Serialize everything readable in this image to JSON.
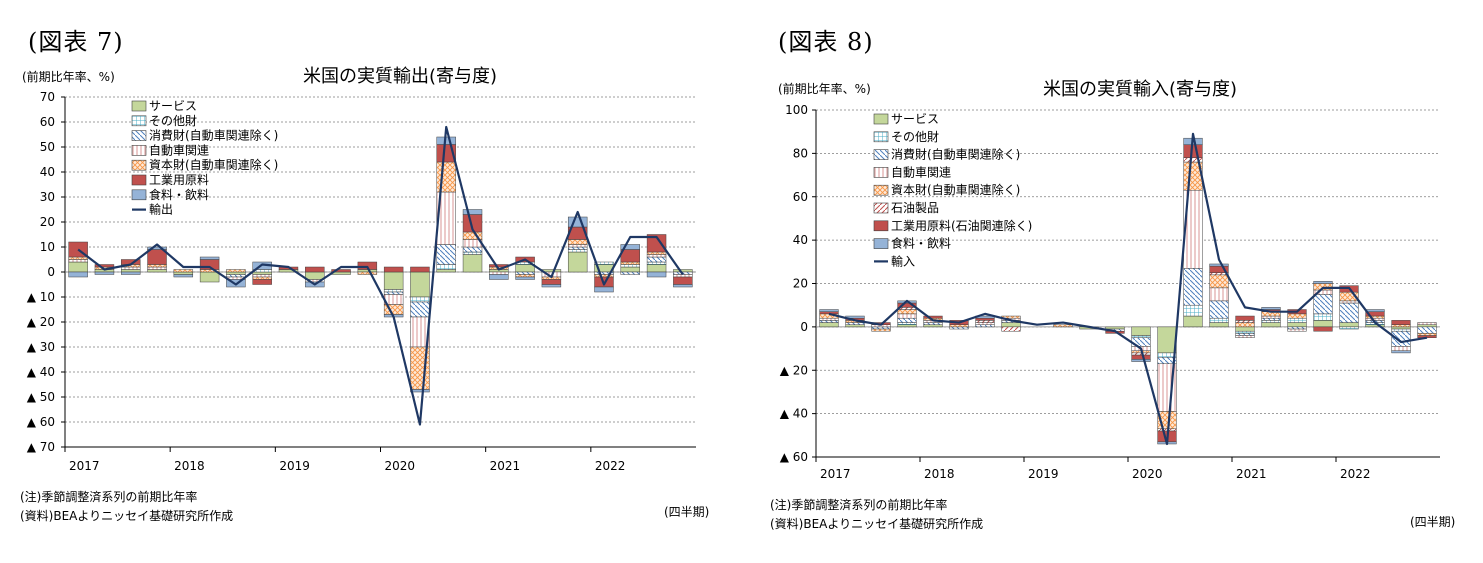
{
  "charts": [
    {
      "figure_label": "(図表 7)",
      "unit_label": "(前期比年率、%)",
      "title": "米国の実質輸出(寄与度)",
      "note": "(注)季節調整済系列の前期比年率",
      "source": "(資料)BEAよりニッセイ基礎研究所作成",
      "period_label": "(四半期)"
    },
    {
      "figure_label": "(図表 8)",
      "unit_label": "(前期比年率、%)",
      "title": "米国の実質輸入(寄与度)",
      "note": "(注)季節調整済系列の前期比年率",
      "source": "(資料)BEAよりニッセイ基礎研究所作成",
      "period_label": "(四半期)"
    }
  ],
  "chart_data": [
    {
      "type": "bar",
      "stacked": true,
      "line_series": "輸出",
      "x_labels": [
        "2017",
        "2018",
        "2019",
        "2020",
        "2021",
        "2022"
      ],
      "quarters": [
        "2017Q1",
        "2017Q2",
        "2017Q3",
        "2017Q4",
        "2018Q1",
        "2018Q2",
        "2018Q3",
        "2018Q4",
        "2019Q1",
        "2019Q2",
        "2019Q3",
        "2019Q4",
        "2020Q1",
        "2020Q2",
        "2020Q3",
        "2020Q4",
        "2021Q1",
        "2021Q2",
        "2021Q3",
        "2021Q4",
        "2022Q1",
        "2022Q2",
        "2022Q3",
        "2022Q4"
      ],
      "ylim": [
        -70,
        70
      ],
      "yticks": [
        -70,
        -60,
        -50,
        -40,
        -30,
        -20,
        -10,
        0,
        10,
        20,
        30,
        40,
        50,
        60,
        70
      ],
      "ytick_labels": [
        "▲ 70",
        "▲ 60",
        "▲ 50",
        "▲ 40",
        "▲ 30",
        "▲ 20",
        "▲ 10",
        "0",
        "10",
        "20",
        "30",
        "40",
        "50",
        "60",
        "70"
      ],
      "grid": true,
      "legend_position": "top-left",
      "series": [
        {
          "name": "サービス",
          "color": "#c4d79b",
          "pattern": "solid",
          "values": [
            4,
            1,
            1,
            1,
            -1,
            -4,
            -1,
            -1,
            1,
            -3,
            -1,
            1,
            -7,
            -10,
            1,
            7,
            1,
            3,
            1,
            8,
            3,
            2,
            3,
            1
          ]
        },
        {
          "name": "その他財",
          "color": "#4bacc6",
          "pattern": "grid",
          "values": [
            0,
            0,
            0,
            0,
            0,
            0,
            0,
            1,
            0,
            0,
            0,
            0,
            -1,
            -2,
            2,
            1,
            0,
            1,
            0,
            1,
            1,
            1,
            1,
            0
          ]
        },
        {
          "name": "消費財(自動車関連除く)",
          "color": "#4f81bd",
          "pattern": "diag",
          "values": [
            0,
            0,
            0,
            0,
            0,
            0,
            -1,
            0,
            0,
            0,
            0,
            0,
            -1,
            -6,
            8,
            2,
            0,
            -1,
            0,
            1,
            -1,
            -1,
            2,
            -1
          ]
        },
        {
          "name": "自動車関連",
          "color": "#d99694",
          "pattern": "vert",
          "values": [
            1,
            0,
            1,
            1,
            0,
            0,
            -1,
            -1,
            0,
            -1,
            0,
            0,
            -4,
            -12,
            21,
            3,
            -1,
            0,
            -2,
            1,
            0,
            0,
            1,
            -1
          ]
        },
        {
          "name": "資本財(自動車関連除く)",
          "color": "#f79646",
          "pattern": "cross",
          "values": [
            1,
            1,
            1,
            1,
            1,
            1,
            1,
            -1,
            0,
            0,
            0,
            -1,
            -4,
            -17,
            12,
            3,
            1,
            -1,
            -1,
            2,
            -1,
            1,
            1,
            0
          ]
        },
        {
          "name": "工業用原料",
          "color": "#c0504d",
          "pattern": "solid",
          "values": [
            6,
            1,
            2,
            6,
            0,
            4,
            0,
            -2,
            1,
            2,
            1,
            3,
            2,
            2,
            7,
            7,
            1,
            2,
            -2,
            5,
            -4,
            5,
            7,
            -3
          ]
        },
        {
          "name": "食料・飲料",
          "color": "#95b3d7",
          "pattern": "solid",
          "values": [
            -2,
            -1,
            -1,
            1,
            -1,
            1,
            -3,
            3,
            0,
            -2,
            0,
            0,
            -1,
            -1,
            3,
            2,
            -2,
            -1,
            -1,
            4,
            -2,
            2,
            -2,
            -1
          ]
        }
      ],
      "line": {
        "name": "輸出",
        "color": "#1f3864",
        "values": [
          9,
          1,
          3,
          11,
          2,
          2,
          -5,
          3,
          2,
          -5,
          2,
          2,
          -18,
          -61,
          58,
          17,
          1,
          5,
          -2,
          24,
          -5,
          14,
          14,
          -1
        ]
      }
    },
    {
      "type": "bar",
      "stacked": true,
      "line_series": "輸入",
      "x_labels": [
        "2017",
        "2018",
        "2019",
        "2020",
        "2021",
        "2022"
      ],
      "quarters": [
        "2017Q1",
        "2017Q2",
        "2017Q3",
        "2017Q4",
        "2018Q1",
        "2018Q2",
        "2018Q3",
        "2018Q4",
        "2019Q1",
        "2019Q2",
        "2019Q3",
        "2019Q4",
        "2020Q1",
        "2020Q2",
        "2020Q3",
        "2020Q4",
        "2021Q1",
        "2021Q2",
        "2021Q3",
        "2021Q4",
        "2022Q1",
        "2022Q2",
        "2022Q3",
        "2022Q4"
      ],
      "ylim": [
        -60,
        100
      ],
      "yticks": [
        -60,
        -40,
        -20,
        0,
        20,
        40,
        60,
        80,
        100
      ],
      "ytick_labels": [
        "▲ 60",
        "▲ 40",
        "▲ 20",
        "0",
        "20",
        "40",
        "60",
        "80",
        "100"
      ],
      "grid": true,
      "legend_position": "top-left",
      "series": [
        {
          "name": "サービス",
          "color": "#c4d79b",
          "pattern": "solid",
          "values": [
            2,
            1,
            0,
            1,
            1,
            0,
            0,
            2,
            0,
            0,
            -1,
            -1,
            -4,
            -12,
            5,
            2,
            -2,
            2,
            2,
            3,
            2,
            1,
            -1,
            1
          ]
        },
        {
          "name": "その他財",
          "color": "#4bacc6",
          "pattern": "grid",
          "values": [
            0,
            0,
            0,
            1,
            0,
            0,
            0,
            0,
            0,
            0,
            0,
            0,
            -1,
            -2,
            5,
            2,
            -1,
            1,
            2,
            3,
            -1,
            1,
            -1,
            0
          ]
        },
        {
          "name": "消費財(自動車関連除く)",
          "color": "#4f81bd",
          "pattern": "diag",
          "values": [
            1,
            1,
            -1,
            2,
            1,
            -1,
            1,
            1,
            0,
            0,
            0,
            -1,
            -4,
            -3,
            17,
            8,
            -1,
            1,
            -1,
            9,
            9,
            1,
            -7,
            -3
          ]
        },
        {
          "name": "自動車関連",
          "color": "#d99694",
          "pattern": "vert",
          "values": [
            1,
            0,
            1,
            2,
            1,
            0,
            1,
            1,
            0,
            0,
            0,
            0,
            -2,
            -22,
            36,
            6,
            -1,
            1,
            -1,
            2,
            1,
            1,
            -2,
            1
          ]
        },
        {
          "name": "資本財(自動車関連除く)",
          "color": "#f79646",
          "pattern": "cross",
          "values": [
            2,
            1,
            -1,
            2,
            1,
            1,
            0,
            1,
            0,
            1,
            0,
            0,
            -1,
            -8,
            13,
            6,
            2,
            2,
            2,
            3,
            4,
            1,
            1,
            -1
          ]
        },
        {
          "name": "石油製品",
          "color": "#c0504d",
          "pattern": "diag2",
          "values": [
            0,
            0,
            0,
            1,
            0,
            0,
            1,
            -2,
            0,
            0,
            0,
            0,
            -1,
            -1,
            2,
            1,
            1,
            0,
            0,
            0,
            0,
            0,
            0,
            0
          ]
        },
        {
          "name": "工業用原料(石油関連除く)",
          "color": "#c0504d",
          "pattern": "solid",
          "values": [
            1,
            1,
            1,
            2,
            1,
            2,
            1,
            0,
            0,
            0,
            0,
            -1,
            -2,
            -5,
            6,
            3,
            2,
            1,
            2,
            -2,
            3,
            2,
            2,
            -1
          ]
        },
        {
          "name": "食料・飲料",
          "color": "#95b3d7",
          "pattern": "solid",
          "values": [
            1,
            1,
            0,
            1,
            0,
            0,
            1,
            0,
            0,
            0,
            0,
            0,
            -1,
            -1,
            3,
            1,
            0,
            1,
            0,
            1,
            0,
            1,
            -1,
            0
          ]
        }
      ],
      "line": {
        "name": "輸入",
        "color": "#1f3864",
        "values": [
          6,
          3,
          1,
          12,
          3,
          2,
          6,
          3,
          1,
          2,
          0,
          -2,
          -10,
          -54,
          89,
          31,
          9,
          7,
          7,
          18,
          18,
          2,
          -7,
          -5
        ]
      }
    }
  ]
}
